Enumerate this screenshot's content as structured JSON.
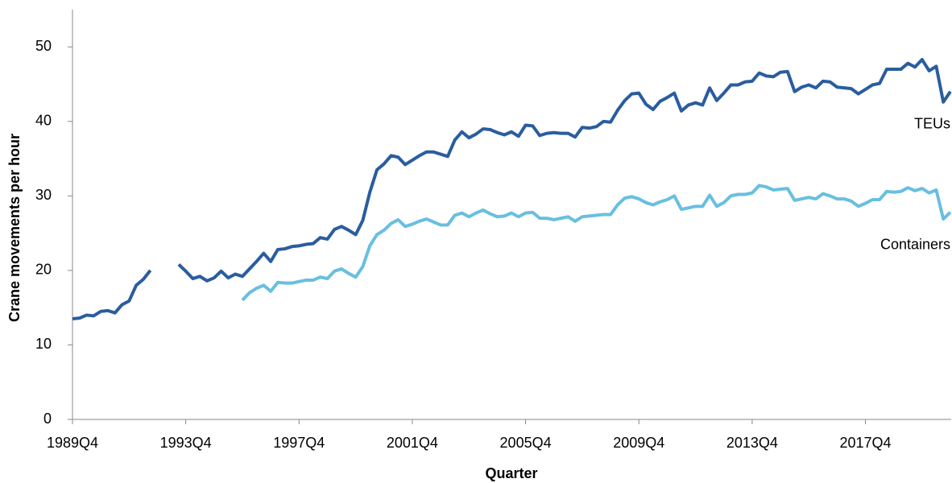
{
  "chart_data": {
    "type": "line",
    "y_label": "Crane movements per hour",
    "x_label": "Quarter",
    "categories": [
      "1989Q4",
      null,
      null,
      null,
      null,
      null,
      null,
      null,
      null,
      null,
      null,
      null,
      null,
      null,
      null,
      null,
      "1993Q4",
      null,
      null,
      null,
      null,
      null,
      null,
      null,
      null,
      null,
      null,
      null,
      null,
      null,
      null,
      null,
      "1997Q4",
      null,
      null,
      null,
      null,
      null,
      null,
      null,
      null,
      null,
      null,
      null,
      null,
      null,
      null,
      null,
      "2001Q4",
      null,
      null,
      null,
      null,
      null,
      null,
      null,
      null,
      null,
      null,
      null,
      null,
      null,
      null,
      null,
      "2005Q4",
      null,
      null,
      null,
      null,
      null,
      null,
      null,
      null,
      null,
      null,
      null,
      null,
      null,
      null,
      null,
      "2009Q4",
      null,
      null,
      null,
      null,
      null,
      null,
      null,
      null,
      null,
      null,
      null,
      null,
      null,
      null,
      null,
      "2013Q4",
      null,
      null,
      null,
      null,
      null,
      null,
      null,
      null,
      null,
      null,
      null,
      null,
      null,
      null,
      null,
      "2017Q4",
      null,
      null,
      null,
      null,
      null,
      null,
      null,
      null,
      null,
      null,
      null,
      null
    ],
    "series": [
      {
        "name": "TEUs",
        "color": "#2a5d9f",
        "values": [
          13.5,
          13.6,
          14.0,
          13.9,
          14.5,
          14.6,
          14.3,
          15.4,
          15.9,
          18.0,
          18.8,
          20.0,
          null,
          null,
          null,
          20.8,
          19.9,
          18.9,
          19.2,
          18.6,
          19.0,
          19.9,
          19.0,
          19.5,
          19.2,
          20.2,
          21.2,
          22.3,
          21.2,
          22.8,
          22.9,
          23.2,
          23.3,
          23.5,
          23.6,
          24.4,
          24.2,
          25.5,
          25.9,
          25.4,
          24.8,
          26.7,
          30.5,
          33.5,
          34.3,
          35.4,
          35.2,
          34.2,
          34.8,
          35.4,
          35.9,
          35.9,
          35.6,
          35.3,
          37.5,
          38.6,
          37.8,
          38.3,
          39.0,
          38.9,
          38.5,
          38.2,
          38.6,
          38.0,
          39.5,
          39.4,
          38.1,
          38.4,
          38.5,
          38.4,
          38.4,
          37.9,
          39.2,
          39.1,
          39.3,
          40.0,
          39.9,
          41.5,
          42.8,
          43.7,
          43.8,
          42.3,
          41.6,
          42.7,
          43.2,
          43.8,
          41.4,
          42.2,
          42.5,
          42.2,
          44.5,
          42.8,
          43.8,
          44.9,
          44.9,
          45.3,
          45.4,
          46.5,
          46.1,
          46.0,
          46.6,
          46.7,
          44.0,
          44.6,
          44.9,
          44.5,
          45.4,
          45.3,
          44.6,
          44.5,
          44.4,
          43.7,
          44.3,
          44.9,
          45.1,
          47.0,
          47.0,
          47.0,
          47.8,
          47.3,
          48.3,
          46.8,
          47.4,
          42.6,
          44.0
        ]
      },
      {
        "name": "Containers",
        "color": "#68bfe0",
        "values": [
          null,
          null,
          null,
          null,
          null,
          null,
          null,
          null,
          null,
          null,
          null,
          null,
          null,
          null,
          null,
          null,
          null,
          null,
          null,
          null,
          null,
          null,
          null,
          null,
          16.0,
          17.0,
          17.6,
          18.0,
          17.2,
          18.4,
          18.3,
          18.3,
          18.5,
          18.7,
          18.7,
          19.1,
          18.9,
          19.9,
          20.2,
          19.6,
          19.1,
          20.5,
          23.3,
          24.8,
          25.4,
          26.3,
          26.8,
          25.9,
          26.2,
          26.6,
          26.9,
          26.5,
          26.1,
          26.1,
          27.4,
          27.7,
          27.2,
          27.7,
          28.1,
          27.6,
          27.2,
          27.3,
          27.7,
          27.2,
          27.7,
          27.8,
          27.0,
          27.0,
          26.8,
          27.0,
          27.2,
          26.6,
          27.2,
          27.3,
          27.4,
          27.5,
          27.5,
          28.8,
          29.7,
          29.9,
          29.6,
          29.1,
          28.8,
          29.2,
          29.5,
          30.0,
          28.2,
          28.4,
          28.6,
          28.6,
          30.1,
          28.6,
          29.1,
          30.0,
          30.2,
          30.2,
          30.4,
          31.4,
          31.2,
          30.8,
          30.9,
          31.0,
          29.4,
          29.6,
          29.8,
          29.6,
          30.3,
          30.0,
          29.6,
          29.6,
          29.3,
          28.6,
          29.0,
          29.5,
          29.5,
          30.6,
          30.5,
          30.6,
          31.1,
          30.7,
          31.0,
          30.4,
          30.8,
          26.9,
          27.8
        ]
      }
    ],
    "ylim": [
      0,
      55
    ],
    "yticks": [
      0,
      10,
      20,
      30,
      40,
      50
    ],
    "grid": false
  }
}
